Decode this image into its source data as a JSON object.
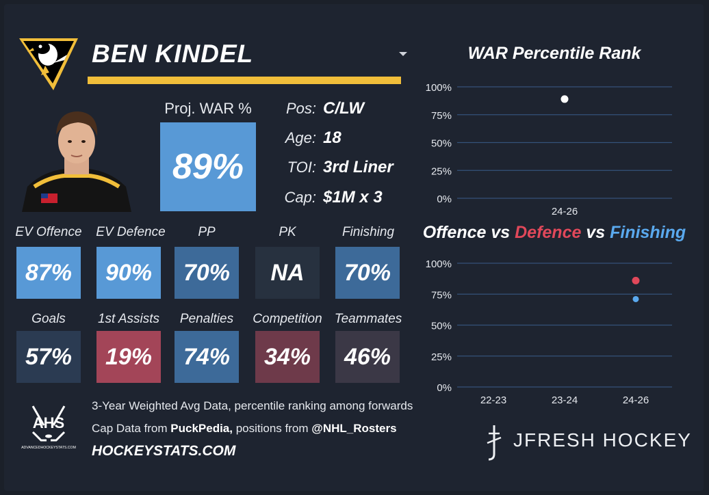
{
  "player": {
    "name": "BEN KINDEL"
  },
  "proj_war": {
    "label": "Proj. WAR %",
    "value": "89%"
  },
  "info": [
    {
      "key": "Pos:",
      "value": "C/LW"
    },
    {
      "key": "Age:",
      "value": "18"
    },
    {
      "key": "TOI:",
      "value": "3rd Liner"
    },
    {
      "key": "Cap:",
      "value": "$1M x 3"
    }
  ],
  "stats": [
    {
      "label": "EV Offence",
      "value": "87%",
      "color": "#5899d6"
    },
    {
      "label": "EV Defence",
      "value": "90%",
      "color": "#5899d6"
    },
    {
      "label": "PP",
      "value": "70%",
      "color": "#3d6a99"
    },
    {
      "label": "PK",
      "value": "NA",
      "color": "#27313f"
    },
    {
      "label": "Finishing",
      "value": "70%",
      "color": "#3d6a99"
    },
    {
      "label": "Goals",
      "value": "57%",
      "color": "#2b3b52"
    },
    {
      "label": "1st Assists",
      "value": "19%",
      "color": "#a34558"
    },
    {
      "label": "Penalties",
      "value": "74%",
      "color": "#3d6a99"
    },
    {
      "label": "Competition",
      "value": "34%",
      "color": "#6e3a4a"
    },
    {
      "label": "Teammates",
      "value": "46%",
      "color": "#3b3846"
    }
  ],
  "footer": {
    "line1": "3-Year Weighted Avg Data, percentile ranking among forwards",
    "line2_a": "Cap Data from ",
    "line2_b": "PuckPedia,",
    "line2_c": " positions from ",
    "line2_d": "@NHL_Rosters",
    "hockeystats": "HOCKEYSTATS.COM",
    "ahs_logo": "AHS",
    "ahs_sub": "ADVANCEDHOCKEYSTATS.COM"
  },
  "branding": {
    "jfresh": "JFRESH HOCKEY"
  },
  "chart_data": [
    {
      "type": "scatter",
      "title": "WAR Percentile Rank",
      "categories": [
        "24-26"
      ],
      "ylim": [
        0,
        100
      ],
      "yticks": [
        "100%",
        "75%",
        "50%",
        "25%",
        "0%"
      ],
      "series": [
        {
          "values": [
            89
          ],
          "color": "#ffffff"
        }
      ],
      "grid": true
    },
    {
      "type": "scatter",
      "title_parts": [
        {
          "text": "Offence",
          "color": "#ffffff"
        },
        {
          "text": " vs ",
          "color": "#ffffff"
        },
        {
          "text": "Defence",
          "color": "#e0485a"
        },
        {
          "text": " vs ",
          "color": "#ffffff"
        },
        {
          "text": "Finishing",
          "color": "#5aa9ee"
        }
      ],
      "categories": [
        "22-23",
        "23-24",
        "24-26"
      ],
      "ylim": [
        0,
        100
      ],
      "yticks": [
        "100%",
        "75%",
        "50%",
        "25%",
        "0%"
      ],
      "series": [
        {
          "values": [
            null,
            null,
            86
          ],
          "color": "#e0485a"
        },
        {
          "values": [
            null,
            null,
            71
          ],
          "color": "#5aa9ee"
        }
      ],
      "grid": true
    }
  ]
}
